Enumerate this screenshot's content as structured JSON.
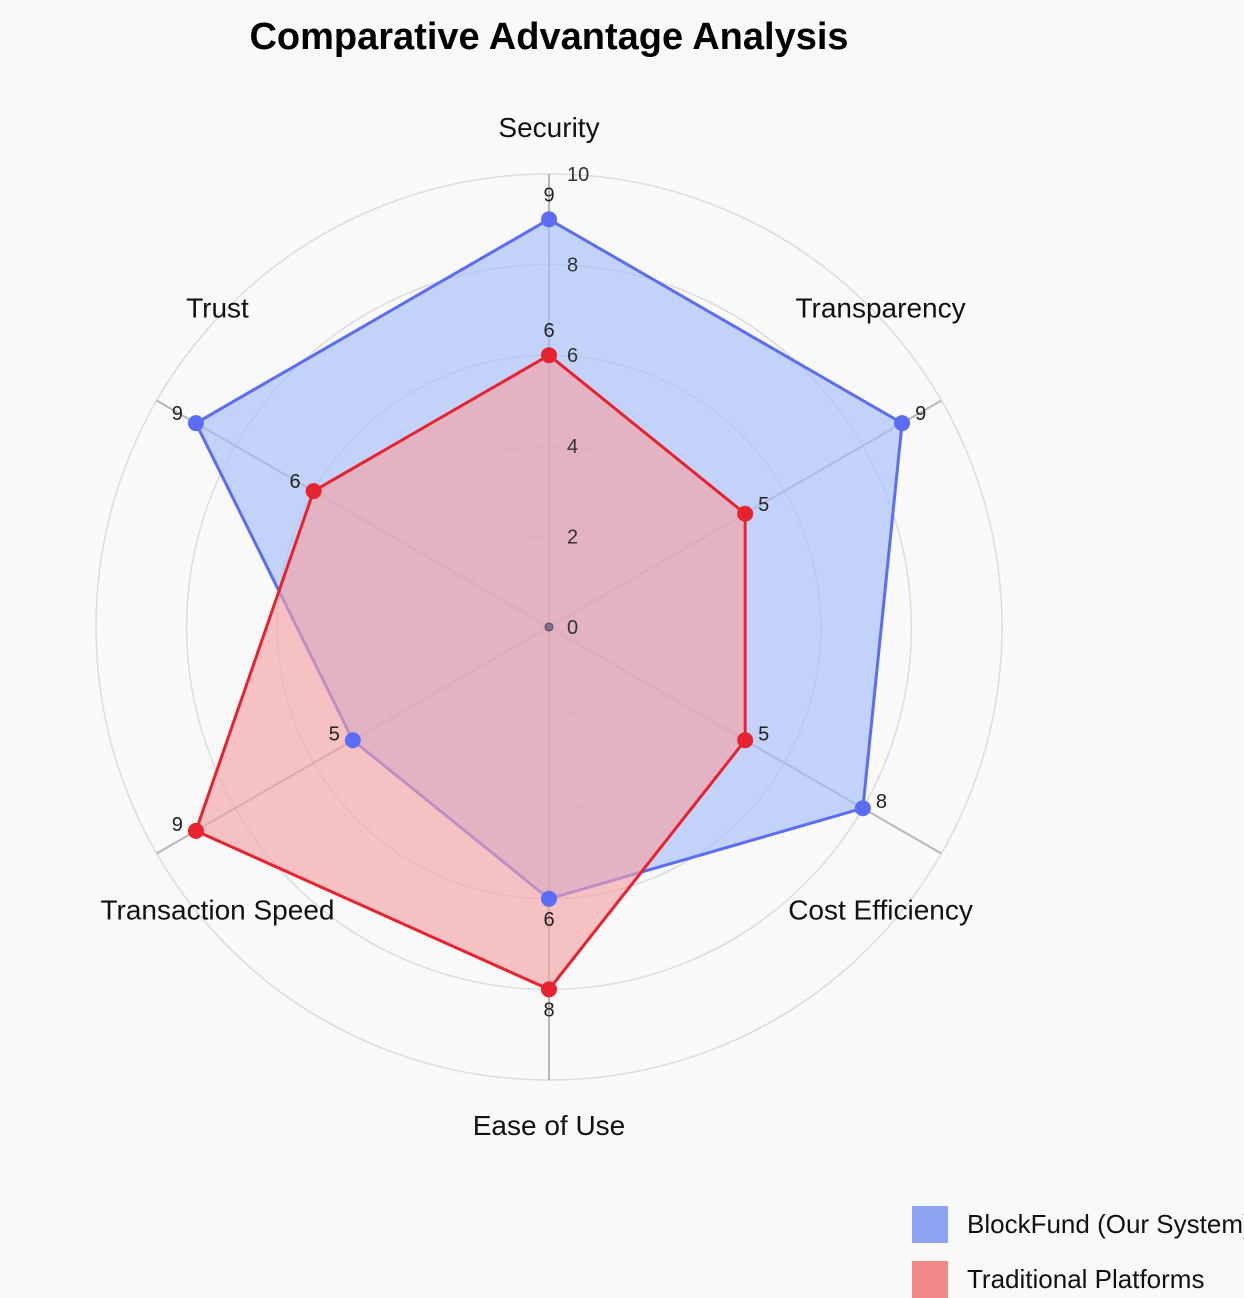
{
  "chart_data": {
    "type": "radar",
    "title": "Comparative Advantage Analysis",
    "axes": [
      "Security",
      "Transparency",
      "Cost Efficiency",
      "Ease of Use",
      "Transaction Speed",
      "Trust"
    ],
    "radial_range": [
      0,
      10
    ],
    "radial_ticks": [
      0,
      2,
      4,
      6,
      8,
      10
    ],
    "grid": true,
    "legend_position": "bottom-right",
    "series": [
      {
        "name": "BlockFund (Our System)",
        "values": [
          9,
          9,
          8,
          6,
          5,
          9
        ],
        "color": "#5b6cf5",
        "fill": "#a6bdf7",
        "legend_color": "#8fa5f4"
      },
      {
        "name": "Traditional Platforms",
        "values": [
          6,
          5,
          5,
          8,
          9,
          6
        ],
        "color": "#e8222f",
        "fill": "#f4a3a6",
        "legend_color": "#f38a89"
      }
    ]
  },
  "legend": {
    "items": [
      {
        "label": "BlockFund (Our System)",
        "color": "#8fa5f4"
      },
      {
        "label": "Traditional Platforms",
        "color": "#f38a89"
      }
    ]
  }
}
